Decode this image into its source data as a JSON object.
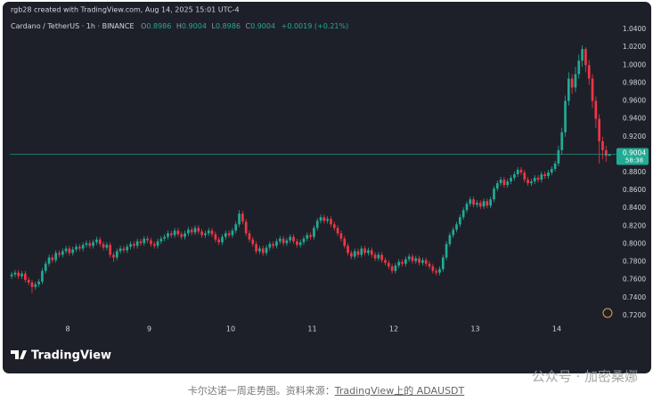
{
  "header": {
    "created": "rgb28 created with TradingView.com, Aug 14, 2025 15:01 UTC-4"
  },
  "chart_data": {
    "type": "candlestick",
    "title": "Cardano / TetherUS · 1h · BINANCE",
    "legend_keys": [
      "O",
      "H",
      "L",
      "C"
    ],
    "change": "+0.0019 (+0.21%)",
    "countdown": "58:38",
    "up_color": "#22ab94",
    "down_color": "#f23645",
    "xlim": [
      0,
      177
    ],
    "xticks": [
      {
        "value": 17,
        "label": "8"
      },
      {
        "value": 41,
        "label": "9"
      },
      {
        "value": 65,
        "label": "10"
      },
      {
        "value": 89,
        "label": "11"
      },
      {
        "value": 113,
        "label": "12"
      },
      {
        "value": 137,
        "label": "13"
      },
      {
        "value": 161,
        "label": "14"
      }
    ],
    "ylim": [
      0.712,
      1.05
    ],
    "yticks": [
      {
        "value": 0.72,
        "label": "0.7200"
      },
      {
        "value": 0.74,
        "label": "0.7400"
      },
      {
        "value": 0.76,
        "label": "0.7600"
      },
      {
        "value": 0.78,
        "label": "0.7800"
      },
      {
        "value": 0.8,
        "label": "0.8000"
      },
      {
        "value": 0.82,
        "label": "0.8200"
      },
      {
        "value": 0.84,
        "label": "0.8400"
      },
      {
        "value": 0.86,
        "label": "0.8600"
      },
      {
        "value": 0.88,
        "label": "0.8800"
      },
      {
        "value": 0.9,
        "label": "0.9000"
      },
      {
        "value": 0.92,
        "label": "0.9200"
      },
      {
        "value": 0.94,
        "label": "0.9400"
      },
      {
        "value": 0.96,
        "label": "0.9600"
      },
      {
        "value": 0.98,
        "label": "0.9800"
      },
      {
        "value": 1.0,
        "label": "1.0000"
      },
      {
        "value": 1.02,
        "label": "1.0200"
      },
      {
        "value": 1.04,
        "label": "1.0400"
      }
    ],
    "grid": false,
    "open": [
      0.764,
      0.766,
      0.768,
      0.764,
      0.767,
      0.76,
      0.757,
      0.752,
      0.755,
      0.758,
      0.77,
      0.778,
      0.785,
      0.782,
      0.79,
      0.788,
      0.792,
      0.795,
      0.79,
      0.794,
      0.797,
      0.795,
      0.799,
      0.801,
      0.798,
      0.802,
      0.805,
      0.8,
      0.796,
      0.799,
      0.788,
      0.785,
      0.792,
      0.795,
      0.793,
      0.797,
      0.8,
      0.798,
      0.803,
      0.801,
      0.806,
      0.804,
      0.8,
      0.798,
      0.803,
      0.806,
      0.808,
      0.812,
      0.81,
      0.815,
      0.811,
      0.808,
      0.812,
      0.816,
      0.813,
      0.818,
      0.814,
      0.81,
      0.812,
      0.815,
      0.811,
      0.805,
      0.802,
      0.808,
      0.812,
      0.81,
      0.815,
      0.822,
      0.834,
      0.825,
      0.812,
      0.805,
      0.8,
      0.792,
      0.795,
      0.79,
      0.796,
      0.8,
      0.798,
      0.803,
      0.806,
      0.801,
      0.804,
      0.808,
      0.803,
      0.799,
      0.802,
      0.806,
      0.81,
      0.808,
      0.818,
      0.826,
      0.83,
      0.826,
      0.828,
      0.822,
      0.818,
      0.812,
      0.806,
      0.798,
      0.79,
      0.786,
      0.792,
      0.788,
      0.795,
      0.79,
      0.793,
      0.788,
      0.784,
      0.788,
      0.782,
      0.779,
      0.775,
      0.77,
      0.776,
      0.78,
      0.778,
      0.783,
      0.786,
      0.781,
      0.784,
      0.779,
      0.782,
      0.778,
      0.775,
      0.77,
      0.768,
      0.772,
      0.785,
      0.8,
      0.81,
      0.816,
      0.822,
      0.83,
      0.838,
      0.845,
      0.85,
      0.844,
      0.846,
      0.842,
      0.848,
      0.843,
      0.85,
      0.862,
      0.868,
      0.872,
      0.866,
      0.87,
      0.874,
      0.878,
      0.883,
      0.88,
      0.872,
      0.868,
      0.87,
      0.874,
      0.872,
      0.878,
      0.876,
      0.88,
      0.884,
      0.89,
      0.905,
      0.925,
      0.96,
      0.985,
      0.975,
      0.99,
      1.005,
      1.018,
      1.0,
      0.985,
      0.96,
      0.94,
      0.915,
      0.905,
      0.8986
    ],
    "high": [
      0.769,
      0.771,
      0.771,
      0.77,
      0.77,
      0.763,
      0.76,
      0.758,
      0.761,
      0.773,
      0.781,
      0.788,
      0.788,
      0.793,
      0.793,
      0.795,
      0.798,
      0.798,
      0.797,
      0.8,
      0.8,
      0.802,
      0.804,
      0.804,
      0.805,
      0.808,
      0.808,
      0.803,
      0.802,
      0.802,
      0.791,
      0.795,
      0.798,
      0.798,
      0.8,
      0.803,
      0.803,
      0.806,
      0.806,
      0.809,
      0.809,
      0.807,
      0.803,
      0.806,
      0.809,
      0.811,
      0.815,
      0.815,
      0.818,
      0.818,
      0.814,
      0.815,
      0.819,
      0.819,
      0.821,
      0.821,
      0.817,
      0.815,
      0.818,
      0.818,
      0.814,
      0.808,
      0.811,
      0.815,
      0.815,
      0.818,
      0.825,
      0.838,
      0.837,
      0.828,
      0.815,
      0.808,
      0.803,
      0.798,
      0.798,
      0.799,
      0.803,
      0.803,
      0.806,
      0.809,
      0.809,
      0.807,
      0.811,
      0.811,
      0.806,
      0.805,
      0.809,
      0.813,
      0.813,
      0.821,
      0.829,
      0.833,
      0.833,
      0.831,
      0.831,
      0.825,
      0.821,
      0.815,
      0.809,
      0.801,
      0.793,
      0.795,
      0.795,
      0.798,
      0.798,
      0.796,
      0.796,
      0.791,
      0.791,
      0.791,
      0.785,
      0.782,
      0.778,
      0.779,
      0.783,
      0.783,
      0.786,
      0.789,
      0.789,
      0.787,
      0.787,
      0.785,
      0.785,
      0.781,
      0.778,
      0.773,
      0.775,
      0.788,
      0.803,
      0.813,
      0.819,
      0.825,
      0.833,
      0.841,
      0.848,
      0.853,
      0.853,
      0.849,
      0.849,
      0.851,
      0.851,
      0.853,
      0.865,
      0.871,
      0.875,
      0.875,
      0.873,
      0.877,
      0.881,
      0.886,
      0.886,
      0.883,
      0.875,
      0.873,
      0.877,
      0.877,
      0.881,
      0.881,
      0.883,
      0.887,
      0.893,
      0.91,
      0.93,
      0.966,
      0.992,
      0.99,
      0.998,
      1.012,
      1.022,
      1.02,
      1.006,
      0.99,
      0.965,
      0.945,
      0.92,
      0.91,
      0.9004
    ],
    "low": [
      0.761,
      0.763,
      0.761,
      0.761,
      0.757,
      0.754,
      0.745,
      0.749,
      0.752,
      0.755,
      0.767,
      0.775,
      0.779,
      0.779,
      0.785,
      0.785,
      0.789,
      0.787,
      0.787,
      0.791,
      0.792,
      0.792,
      0.796,
      0.795,
      0.795,
      0.799,
      0.797,
      0.793,
      0.793,
      0.785,
      0.78,
      0.782,
      0.789,
      0.79,
      0.79,
      0.794,
      0.795,
      0.795,
      0.798,
      0.798,
      0.801,
      0.797,
      0.795,
      0.795,
      0.8,
      0.803,
      0.805,
      0.807,
      0.807,
      0.808,
      0.805,
      0.805,
      0.809,
      0.81,
      0.81,
      0.811,
      0.807,
      0.807,
      0.809,
      0.808,
      0.802,
      0.799,
      0.799,
      0.805,
      0.807,
      0.807,
      0.812,
      0.819,
      0.822,
      0.809,
      0.802,
      0.797,
      0.789,
      0.789,
      0.787,
      0.787,
      0.793,
      0.795,
      0.795,
      0.8,
      0.798,
      0.798,
      0.801,
      0.8,
      0.796,
      0.796,
      0.799,
      0.803,
      0.805,
      0.805,
      0.815,
      0.823,
      0.823,
      0.823,
      0.819,
      0.815,
      0.809,
      0.803,
      0.795,
      0.787,
      0.783,
      0.783,
      0.785,
      0.785,
      0.787,
      0.787,
      0.785,
      0.781,
      0.781,
      0.779,
      0.776,
      0.772,
      0.767,
      0.767,
      0.773,
      0.775,
      0.775,
      0.78,
      0.778,
      0.778,
      0.776,
      0.776,
      0.775,
      0.772,
      0.767,
      0.765,
      0.765,
      0.769,
      0.782,
      0.797,
      0.807,
      0.813,
      0.819,
      0.827,
      0.835,
      0.842,
      0.841,
      0.841,
      0.839,
      0.839,
      0.84,
      0.84,
      0.847,
      0.859,
      0.865,
      0.863,
      0.863,
      0.867,
      0.871,
      0.875,
      0.877,
      0.869,
      0.865,
      0.865,
      0.867,
      0.869,
      0.869,
      0.873,
      0.873,
      0.877,
      0.881,
      0.887,
      0.9,
      0.92,
      0.955,
      0.968,
      0.97,
      0.985,
      0.998,
      0.992,
      0.978,
      0.952,
      0.93,
      0.89,
      0.895,
      0.892,
      0.8986
    ],
    "close": [
      0.766,
      0.768,
      0.764,
      0.767,
      0.76,
      0.757,
      0.752,
      0.755,
      0.758,
      0.77,
      0.778,
      0.785,
      0.782,
      0.79,
      0.788,
      0.792,
      0.795,
      0.79,
      0.794,
      0.797,
      0.795,
      0.799,
      0.801,
      0.798,
      0.802,
      0.805,
      0.8,
      0.796,
      0.799,
      0.788,
      0.785,
      0.792,
      0.795,
      0.793,
      0.797,
      0.8,
      0.798,
      0.803,
      0.801,
      0.806,
      0.804,
      0.8,
      0.798,
      0.803,
      0.806,
      0.808,
      0.812,
      0.81,
      0.815,
      0.811,
      0.808,
      0.812,
      0.816,
      0.813,
      0.818,
      0.814,
      0.81,
      0.812,
      0.815,
      0.811,
      0.805,
      0.802,
      0.808,
      0.812,
      0.81,
      0.815,
      0.822,
      0.834,
      0.825,
      0.812,
      0.805,
      0.8,
      0.792,
      0.795,
      0.79,
      0.796,
      0.8,
      0.798,
      0.803,
      0.806,
      0.801,
      0.804,
      0.808,
      0.803,
      0.799,
      0.802,
      0.806,
      0.81,
      0.808,
      0.818,
      0.826,
      0.83,
      0.826,
      0.828,
      0.822,
      0.818,
      0.812,
      0.806,
      0.798,
      0.79,
      0.786,
      0.792,
      0.788,
      0.795,
      0.79,
      0.793,
      0.788,
      0.784,
      0.788,
      0.782,
      0.779,
      0.775,
      0.77,
      0.776,
      0.78,
      0.778,
      0.783,
      0.786,
      0.781,
      0.784,
      0.779,
      0.782,
      0.778,
      0.775,
      0.77,
      0.768,
      0.772,
      0.785,
      0.8,
      0.81,
      0.816,
      0.822,
      0.83,
      0.838,
      0.845,
      0.85,
      0.844,
      0.846,
      0.842,
      0.848,
      0.843,
      0.85,
      0.862,
      0.868,
      0.872,
      0.866,
      0.87,
      0.874,
      0.878,
      0.883,
      0.88,
      0.872,
      0.868,
      0.87,
      0.874,
      0.872,
      0.878,
      0.876,
      0.88,
      0.884,
      0.89,
      0.905,
      0.925,
      0.96,
      0.985,
      0.975,
      0.99,
      1.005,
      1.018,
      1.0,
      0.985,
      0.96,
      0.94,
      0.915,
      0.905,
      0.8986,
      0.9004
    ]
  },
  "branding": "TradingView",
  "caption": {
    "text": "卡尔达诺一周走势图。资料来源：",
    "link": "TradingView上的 ADAUSDT"
  },
  "watermark": "公众号 · 加密桑娜"
}
